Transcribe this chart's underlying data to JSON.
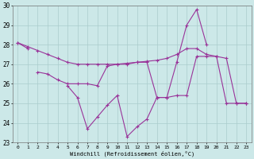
{
  "xlabel": "Windchill (Refroidissement éolien,°C)",
  "x": [
    0,
    1,
    2,
    3,
    4,
    5,
    6,
    7,
    8,
    9,
    10,
    11,
    12,
    13,
    14,
    15,
    16,
    17,
    18,
    19,
    20,
    21,
    22,
    23
  ],
  "line1": [
    28.1,
    27.9,
    27.7,
    27.5,
    27.3,
    27.1,
    27.0,
    27.0,
    27.0,
    27.0,
    27.0,
    27.05,
    27.1,
    27.15,
    27.2,
    27.3,
    27.5,
    27.8,
    27.8,
    27.5,
    27.4,
    27.3,
    25.0,
    25.0
  ],
  "line2": [
    null,
    null,
    26.6,
    26.5,
    26.2,
    26.0,
    26.0,
    26.0,
    25.9,
    26.9,
    27.0,
    27.0,
    27.1,
    27.1,
    25.3,
    25.3,
    25.4,
    25.4,
    27.4,
    27.4,
    27.4,
    25.0,
    25.0,
    25.0
  ],
  "line3": [
    28.1,
    27.8,
    null,
    null,
    null,
    25.9,
    25.3,
    23.7,
    24.3,
    24.9,
    25.4,
    23.3,
    23.8,
    24.2,
    25.3,
    25.3,
    27.1,
    29.0,
    29.8,
    28.0,
    null,
    null,
    null,
    25.0
  ],
  "ylim": [
    23,
    30
  ],
  "yticks": [
    23,
    24,
    25,
    26,
    27,
    28,
    29,
    30
  ],
  "xlim": [
    -0.5,
    23.5
  ],
  "xticks": [
    0,
    1,
    2,
    3,
    4,
    5,
    6,
    7,
    8,
    9,
    10,
    11,
    12,
    13,
    14,
    15,
    16,
    17,
    18,
    19,
    20,
    21,
    22,
    23
  ],
  "line_color": "#993399",
  "bg_color": "#cce8e8",
  "grid_color": "#aacccc"
}
